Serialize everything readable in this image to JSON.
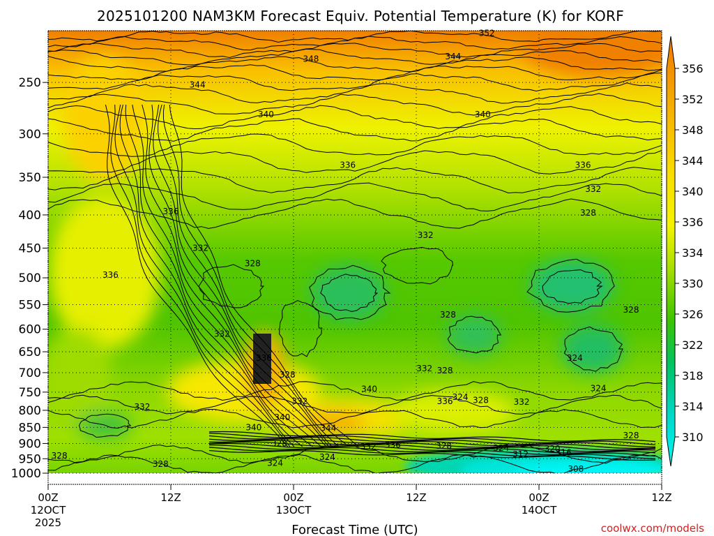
{
  "chart_data": {
    "type": "contour",
    "title": "2025101200 NAM3KM Forecast Equiv. Potential Temperature (K) for KORF",
    "xlabel": "Forecast Time (UTC)",
    "ylabel": "",
    "credit": "coolwx.com/models",
    "x_ticks": [
      {
        "hour": 0,
        "label": "00Z",
        "sub": "12OCT",
        "sub2": "2025"
      },
      {
        "hour": 12,
        "label": "12Z",
        "sub": "",
        "sub2": ""
      },
      {
        "hour": 24,
        "label": "00Z",
        "sub": "13OCT",
        "sub2": ""
      },
      {
        "hour": 36,
        "label": "12Z",
        "sub": "",
        "sub2": ""
      },
      {
        "hour": 48,
        "label": "00Z",
        "sub": "14OCT",
        "sub2": ""
      },
      {
        "hour": 60,
        "label": "12Z",
        "sub": "",
        "sub2": ""
      }
    ],
    "xlim": [
      0,
      60
    ],
    "y_ticks": [
      250,
      300,
      350,
      400,
      450,
      500,
      550,
      600,
      650,
      700,
      750,
      800,
      850,
      900,
      950,
      1000
    ],
    "ylim_hpa": [
      200,
      1000
    ],
    "y_scale": "log-pressure",
    "colorbar": {
      "ticks": [
        356,
        352,
        348,
        344,
        340,
        336,
        334,
        330,
        326,
        322,
        318,
        314,
        310
      ],
      "colors": [
        "#f07f00",
        "#f4a000",
        "#f8c400",
        "#fbe000",
        "#f5f500",
        "#d9ee00",
        "#a8e000",
        "#70d300",
        "#33c400",
        "#00c35a",
        "#00d0a8",
        "#00e2db",
        "#00f3f3"
      ]
    },
    "contour_labels": [
      {
        "t": 42.9,
        "p": 210,
        "v": "352"
      },
      {
        "t": 25.7,
        "p": 230,
        "v": "348"
      },
      {
        "t": 39.6,
        "p": 228,
        "v": "344"
      },
      {
        "t": 14.6,
        "p": 252,
        "v": "344"
      },
      {
        "t": 21.3,
        "p": 280,
        "v": "340"
      },
      {
        "t": 42.5,
        "p": 280,
        "v": "340"
      },
      {
        "t": 29.3,
        "p": 335,
        "v": "336"
      },
      {
        "t": 52.3,
        "p": 335,
        "v": "336"
      },
      {
        "t": 53.3,
        "p": 365,
        "v": "332"
      },
      {
        "t": 52.8,
        "p": 397,
        "v": "328"
      },
      {
        "t": 12.0,
        "p": 395,
        "v": "336"
      },
      {
        "t": 14.9,
        "p": 450,
        "v": "332"
      },
      {
        "t": 36.9,
        "p": 430,
        "v": "332"
      },
      {
        "t": 20.0,
        "p": 475,
        "v": "328"
      },
      {
        "t": 6.1,
        "p": 495,
        "v": "336"
      },
      {
        "t": 39.1,
        "p": 570,
        "v": "328"
      },
      {
        "t": 57.0,
        "p": 560,
        "v": "328"
      },
      {
        "t": 17.0,
        "p": 610,
        "v": "332"
      },
      {
        "t": 21.1,
        "p": 665,
        "v": "336"
      },
      {
        "t": 51.5,
        "p": 665,
        "v": "324"
      },
      {
        "t": 36.8,
        "p": 690,
        "v": "332"
      },
      {
        "t": 38.8,
        "p": 695,
        "v": "328"
      },
      {
        "t": 23.4,
        "p": 705,
        "v": "328"
      },
      {
        "t": 31.4,
        "p": 742,
        "v": "340"
      },
      {
        "t": 53.8,
        "p": 740,
        "v": "324"
      },
      {
        "t": 40.3,
        "p": 763,
        "v": "324"
      },
      {
        "t": 42.3,
        "p": 772,
        "v": "328"
      },
      {
        "t": 46.3,
        "p": 777,
        "v": "332"
      },
      {
        "t": 38.8,
        "p": 775,
        "v": "336"
      },
      {
        "t": 24.6,
        "p": 775,
        "v": "332"
      },
      {
        "t": 9.2,
        "p": 790,
        "v": "332"
      },
      {
        "t": 22.9,
        "p": 820,
        "v": "340"
      },
      {
        "t": 20.1,
        "p": 850,
        "v": "340"
      },
      {
        "t": 27.4,
        "p": 852,
        "v": "344"
      },
      {
        "t": 57.0,
        "p": 875,
        "v": "328"
      },
      {
        "t": 22.6,
        "p": 900,
        "v": "328"
      },
      {
        "t": 31.3,
        "p": 910,
        "v": "332"
      },
      {
        "t": 33.7,
        "p": 905,
        "v": "336"
      },
      {
        "t": 38.7,
        "p": 908,
        "v": "328"
      },
      {
        "t": 44.3,
        "p": 915,
        "v": "324"
      },
      {
        "t": 49.3,
        "p": 917,
        "v": "320"
      },
      {
        "t": 46.2,
        "p": 935,
        "v": "312"
      },
      {
        "t": 50.4,
        "p": 930,
        "v": "316"
      },
      {
        "t": 27.3,
        "p": 945,
        "v": "324"
      },
      {
        "t": 22.2,
        "p": 965,
        "v": "324"
      },
      {
        "t": 1.1,
        "p": 940,
        "v": "328"
      },
      {
        "t": 11.0,
        "p": 968,
        "v": "328"
      },
      {
        "t": 51.6,
        "p": 985,
        "v": "308"
      }
    ]
  }
}
